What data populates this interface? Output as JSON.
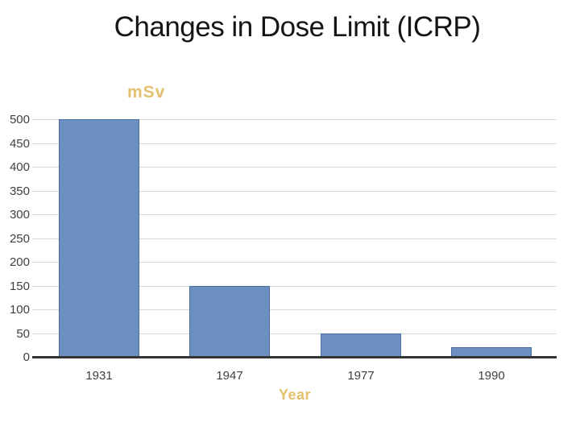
{
  "slide": {
    "title": "Changes in Dose Limit (ICRP)"
  },
  "chart_data": {
    "type": "bar",
    "categories": [
      "1931",
      "1947",
      "1977",
      "1990"
    ],
    "values": [
      500,
      150,
      50,
      20
    ],
    "title": "Changes in Dose Limit (ICRP)",
    "xlabel": "Year",
    "ylabel": "mSv",
    "ylim": [
      0,
      500
    ],
    "ytick_step": 50,
    "grid": "horizontal",
    "legend": "none",
    "colors": {
      "bar_fill": "#6b90c1",
      "bar_border": "#4a6c9b",
      "axis_title_gold": "#e3bf6e",
      "tick_text": "#3f3f3f",
      "gridline": "#d9d9d9",
      "axis_line": "#333333",
      "title_text": "#151515"
    }
  }
}
